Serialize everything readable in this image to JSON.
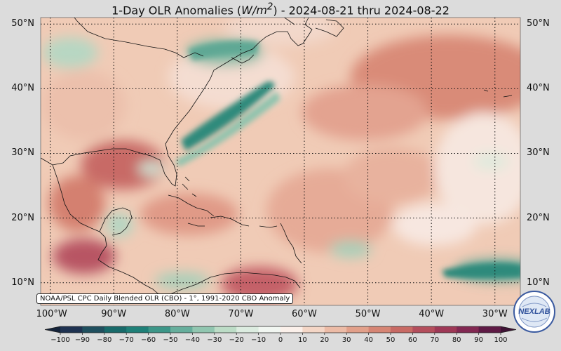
{
  "title": "1-Day OLR Anomalies",
  "title_unit_base": "W/m",
  "title_unit_exp": "2",
  "title_dates": "2024-08-21 thru 2024-08-22",
  "lat_labels": [
    "50°N",
    "40°N",
    "30°N",
    "20°N",
    "10°N"
  ],
  "lat_values": [
    50,
    40,
    30,
    20,
    10
  ],
  "lon_labels": [
    "100°W",
    "90°W",
    "80°W",
    "70°W",
    "60°W",
    "50°W",
    "40°W",
    "30°W"
  ],
  "lon_values": [
    -100,
    -90,
    -80,
    -70,
    -60,
    -50,
    -40,
    -30
  ],
  "map_extent": {
    "lon_min": -101.5,
    "lon_max": -26,
    "lat_min": 6.5,
    "lat_max": 51
  },
  "source_note": "NOAA/PSL CPC Daily Blended OLR (CBO) - 1°, 1991-2020 CBO Anomaly",
  "logo_text": "NEXLAB",
  "colorbar": {
    "min": -100,
    "max": 100,
    "tick_labels": [
      "−100",
      "−90",
      "−80",
      "−70",
      "−60",
      "−50",
      "−40",
      "−30",
      "−20",
      "−10",
      "0",
      "10",
      "20",
      "30",
      "40",
      "50",
      "60",
      "70",
      "80",
      "90",
      "100"
    ],
    "colors": [
      "#1e3251",
      "#1f4f5e",
      "#186a6a",
      "#1f8078",
      "#3c9688",
      "#66ae9c",
      "#91c6b0",
      "#bcdcc6",
      "#dcece0",
      "#f1f6f1",
      "#fbf0ea",
      "#f4d6c6",
      "#ecbba6",
      "#e2a08a",
      "#d68574",
      "#c86a64",
      "#b44e5c",
      "#9e3856",
      "#822852",
      "#5e1a45"
    ]
  },
  "colors": {
    "background": "#dcdcdc",
    "ocean_base": "#f0cbb6",
    "coast": "#111111"
  }
}
